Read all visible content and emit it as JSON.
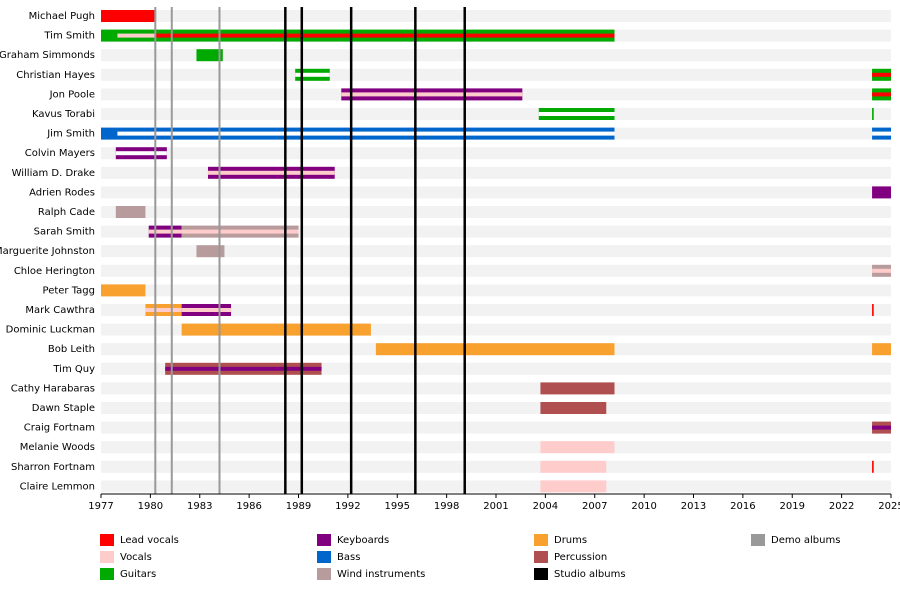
{
  "chart_data": {
    "type": "timeline",
    "xlim": [
      1977,
      2025
    ],
    "xticks": [
      1977,
      1980,
      1983,
      1986,
      1989,
      1992,
      1995,
      1998,
      2001,
      2004,
      2007,
      2010,
      2013,
      2016,
      2019,
      2022,
      2025
    ],
    "legend": [
      {
        "name": "Lead vocals",
        "color": "#ff0000"
      },
      {
        "name": "Vocals",
        "color": "#ffcccc"
      },
      {
        "name": "Guitars",
        "color": "#00aa00"
      },
      {
        "name": "Keyboards",
        "color": "#800080"
      },
      {
        "name": "Bass",
        "color": "#0066cc"
      },
      {
        "name": "Wind instruments",
        "color": "#b89b9d"
      },
      {
        "name": "Drums",
        "color": "#f9a12e"
      },
      {
        "name": "Percussion",
        "color": "#b04f4f"
      },
      {
        "name": "Studio albums",
        "color": "#000000",
        "years": [
          1988.2,
          1989.2,
          1992.2,
          1996.1,
          1999.1
        ]
      },
      {
        "name": "Demo albums",
        "color": "#999999",
        "years": [
          1980.3,
          1981.3,
          1984.2
        ]
      }
    ],
    "rows": [
      {
        "name": "Michael Pugh",
        "bars": [
          {
            "start": 1977,
            "end": 1980.3,
            "color": "#ff0000"
          }
        ]
      },
      {
        "name": "Tim Smith",
        "bars": [
          {
            "start": 1977,
            "end": 1978,
            "color": "#00aa00"
          },
          {
            "start": 1978,
            "end": 1980.3,
            "color": "#00aa00",
            "stripe": "#ffcccc"
          },
          {
            "start": 1980.3,
            "end": 2008.2,
            "color": "#00aa00",
            "stripe": "#ff0000"
          }
        ]
      },
      {
        "name": "Graham Simmonds",
        "bars": [
          {
            "start": 1982.8,
            "end": 1984.4,
            "color": "#00aa00"
          }
        ]
      },
      {
        "name": "Christian Hayes",
        "bars": [
          {
            "start": 1988.8,
            "end": 1990.9,
            "color": "#00aa00",
            "stripe": "#ffffff"
          },
          {
            "start": 2023.85,
            "end": 2025,
            "color": "#00aa00",
            "stripe": "#ff0000"
          }
        ]
      },
      {
        "name": "Jon Poole",
        "bars": [
          {
            "start": 1991.6,
            "end": 2002.6,
            "color": "#800080",
            "stripe": "#ffcccc"
          },
          {
            "start": 2023.85,
            "end": 2025,
            "color": "#00aa00",
            "stripe": "#ff0000"
          }
        ]
      },
      {
        "name": "Kavus Torabi",
        "bars": [
          {
            "start": 2003.6,
            "end": 2008.2,
            "color": "#00aa00",
            "stripe": "#ffffff"
          },
          {
            "start": 2023.85,
            "end": 2023.95,
            "color": "#00aa00"
          }
        ]
      },
      {
        "name": "Jim Smith",
        "bars": [
          {
            "start": 1977,
            "end": 1978,
            "color": "#0066cc"
          },
          {
            "start": 1978,
            "end": 2008.2,
            "color": "#0066cc",
            "stripe": "#ffffff"
          },
          {
            "start": 2023.85,
            "end": 2025,
            "color": "#0066cc",
            "stripe": "#ffffff"
          }
        ]
      },
      {
        "name": "Colvin Mayers",
        "bars": [
          {
            "start": 1977.9,
            "end": 1981.0,
            "color": "#800080",
            "stripe": "#ffffff"
          }
        ]
      },
      {
        "name": "William D. Drake",
        "bars": [
          {
            "start": 1983.5,
            "end": 1991.2,
            "color": "#800080",
            "stripe": "#ffcccc"
          }
        ]
      },
      {
        "name": "Adrien Rodes",
        "bars": [
          {
            "start": 2023.85,
            "end": 2025,
            "color": "#800080"
          }
        ]
      },
      {
        "name": "Ralph Cade",
        "bars": [
          {
            "start": 1977.9,
            "end": 1979.7,
            "color": "#b89b9d"
          }
        ]
      },
      {
        "name": "Sarah Smith",
        "bars": [
          {
            "start": 1979.9,
            "end": 1981.9,
            "color": "#800080",
            "stripe": "#ffcccc"
          },
          {
            "start": 1981.9,
            "end": 1989.0,
            "color": "#b89b9d",
            "stripe": "#ffcccc"
          }
        ]
      },
      {
        "name": "Marguerite Johnston",
        "bars": [
          {
            "start": 1982.8,
            "end": 1984.5,
            "color": "#b89b9d"
          }
        ]
      },
      {
        "name": "Chloe Herington",
        "bars": [
          {
            "start": 2023.85,
            "end": 2025,
            "color": "#b89b9d",
            "stripe": "#ffcccc"
          }
        ]
      },
      {
        "name": "Peter Tagg",
        "bars": [
          {
            "start": 1977,
            "end": 1979.7,
            "color": "#f9a12e"
          }
        ]
      },
      {
        "name": "Mark Cawthra",
        "bars": [
          {
            "start": 1979.7,
            "end": 1981.9,
            "color": "#f9a12e",
            "stripe": "#ffcccc"
          },
          {
            "start": 1981.9,
            "end": 1984.9,
            "color": "#800080",
            "stripe": "#ffcccc"
          },
          {
            "start": 2023.85,
            "end": 2023.95,
            "color": "#ff0000"
          }
        ]
      },
      {
        "name": "Dominic Luckman",
        "bars": [
          {
            "start": 1981.9,
            "end": 1993.4,
            "color": "#f9a12e"
          }
        ]
      },
      {
        "name": "Bob Leith",
        "bars": [
          {
            "start": 1993.7,
            "end": 2008.2,
            "color": "#f9a12e"
          },
          {
            "start": 2023.85,
            "end": 2025,
            "color": "#f9a12e"
          }
        ]
      },
      {
        "name": "Tim Quy",
        "bars": [
          {
            "start": 1980.9,
            "end": 1990.4,
            "color": "#b04f4f",
            "stripe": "#800080"
          }
        ]
      },
      {
        "name": "Cathy Harabaras",
        "bars": [
          {
            "start": 2003.7,
            "end": 2008.2,
            "color": "#b04f4f"
          }
        ]
      },
      {
        "name": "Dawn Staple",
        "bars": [
          {
            "start": 2003.7,
            "end": 2007.7,
            "color": "#b04f4f"
          }
        ]
      },
      {
        "name": "Craig Fortnam",
        "bars": [
          {
            "start": 2023.85,
            "end": 2025,
            "color": "#b04f4f",
            "stripe": "#800080"
          }
        ]
      },
      {
        "name": "Melanie Woods",
        "bars": [
          {
            "start": 2003.7,
            "end": 2008.2,
            "color": "#ffcccc"
          }
        ]
      },
      {
        "name": "Sharron Fortnam",
        "bars": [
          {
            "start": 2003.7,
            "end": 2007.7,
            "color": "#ffcccc"
          },
          {
            "start": 2023.85,
            "end": 2023.95,
            "color": "#ff0000"
          }
        ]
      },
      {
        "name": "Claire Lemmon",
        "bars": [
          {
            "start": 2003.7,
            "end": 2007.7,
            "color": "#ffcccc"
          }
        ]
      }
    ]
  }
}
